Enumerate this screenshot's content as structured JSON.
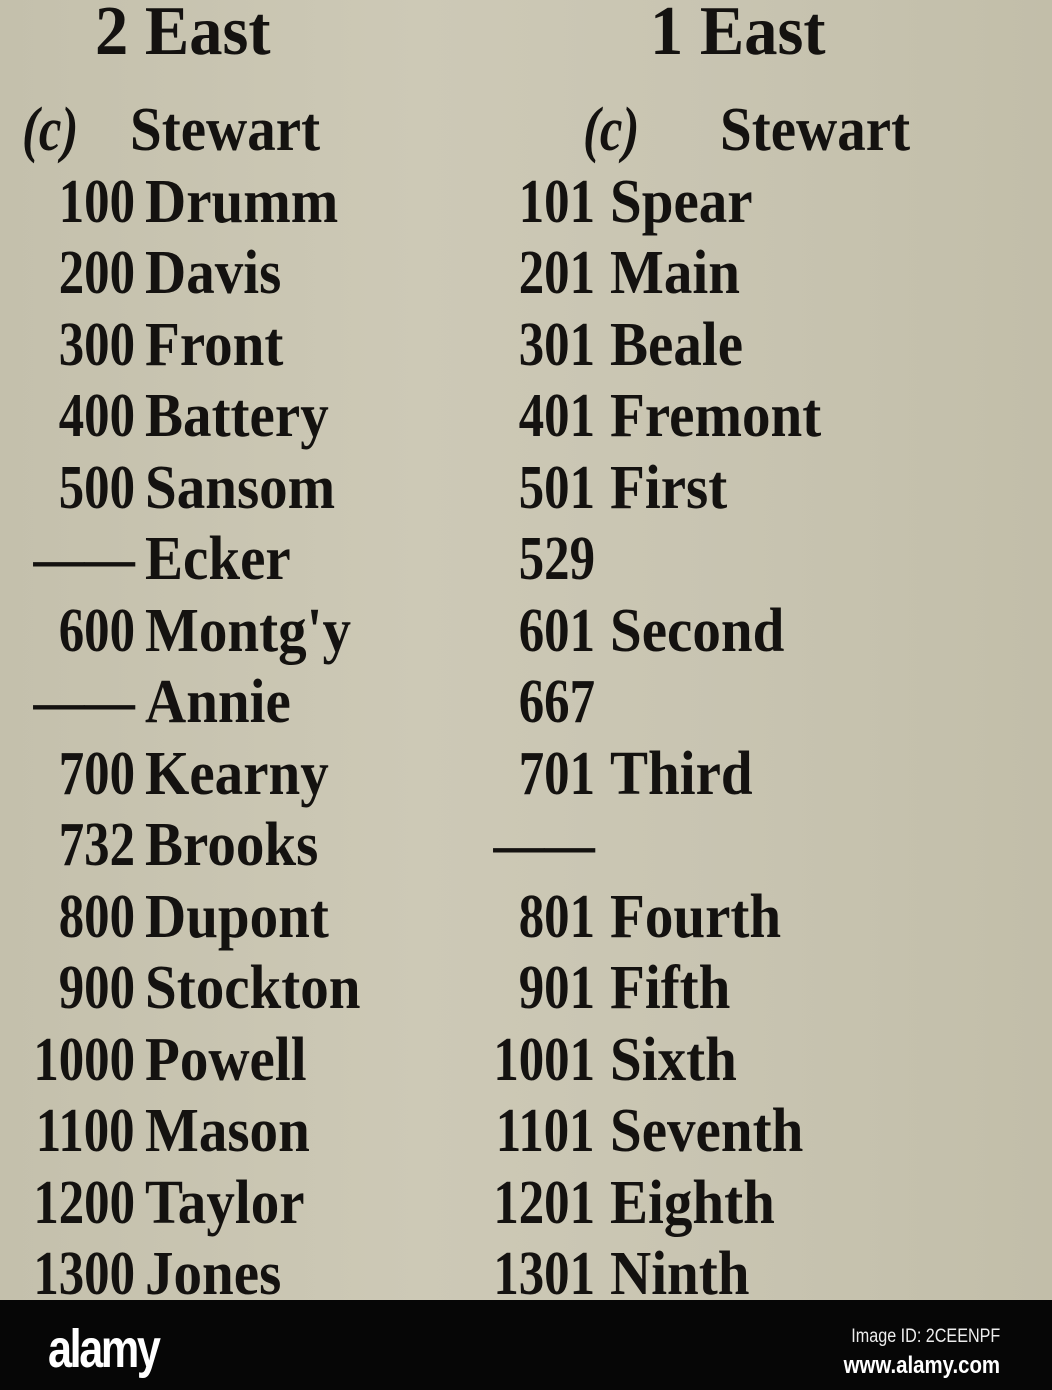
{
  "headers": {
    "left": "2 East",
    "right": "1 East"
  },
  "rows": [
    {
      "left_num": "(c)",
      "left_name": "Stewart",
      "right_num": "(c)",
      "right_name": "Stewart",
      "paren": true
    },
    {
      "left_num": "100",
      "left_name": "Drumm",
      "right_num": "101",
      "right_name": "Spear"
    },
    {
      "left_num": "200",
      "left_name": "Davis",
      "right_num": "201",
      "right_name": "Main"
    },
    {
      "left_num": "300",
      "left_name": "Front",
      "right_num": "301",
      "right_name": "Beale"
    },
    {
      "left_num": "400",
      "left_name": "Battery",
      "right_num": "401",
      "right_name": "Fremont"
    },
    {
      "left_num": "500",
      "left_name": "Sansom",
      "right_num": "501",
      "right_name": "First"
    },
    {
      "left_num": "——",
      "left_name": "Ecker",
      "right_num": "529",
      "right_name": ""
    },
    {
      "left_num": "600",
      "left_name": "Montg'y",
      "right_num": "601",
      "right_name": "Second"
    },
    {
      "left_num": "——",
      "left_name": "Annie",
      "right_num": "667",
      "right_name": ""
    },
    {
      "left_num": "700",
      "left_name": "Kearny",
      "right_num": "701",
      "right_name": "Third"
    },
    {
      "left_num": "732",
      "left_name": "Brooks",
      "right_num": "——",
      "right_name": ""
    },
    {
      "left_num": "800",
      "left_name": "Dupont",
      "right_num": "801",
      "right_name": "Fourth"
    },
    {
      "left_num": "900",
      "left_name": "Stockton",
      "right_num": "901",
      "right_name": "Fifth"
    },
    {
      "left_num": "1000",
      "left_name": "Powell",
      "right_num": "1001",
      "right_name": "Sixth"
    },
    {
      "left_num": "1100",
      "left_name": "Mason",
      "right_num": "1101",
      "right_name": "Seventh"
    },
    {
      "left_num": "1200",
      "left_name": "Taylor",
      "right_num": "1201",
      "right_name": "Eighth"
    },
    {
      "left_num": "1300",
      "left_name": "Jones",
      "right_num": "1301",
      "right_name": "Ninth"
    }
  ],
  "watermark": {
    "logo": "alamy",
    "image_id": "Image ID: 2CEENPF",
    "url": "www.alamy.com",
    "background": "#060606"
  },
  "colors": {
    "paper": "#c9c5b2",
    "ink": "#141210"
  }
}
